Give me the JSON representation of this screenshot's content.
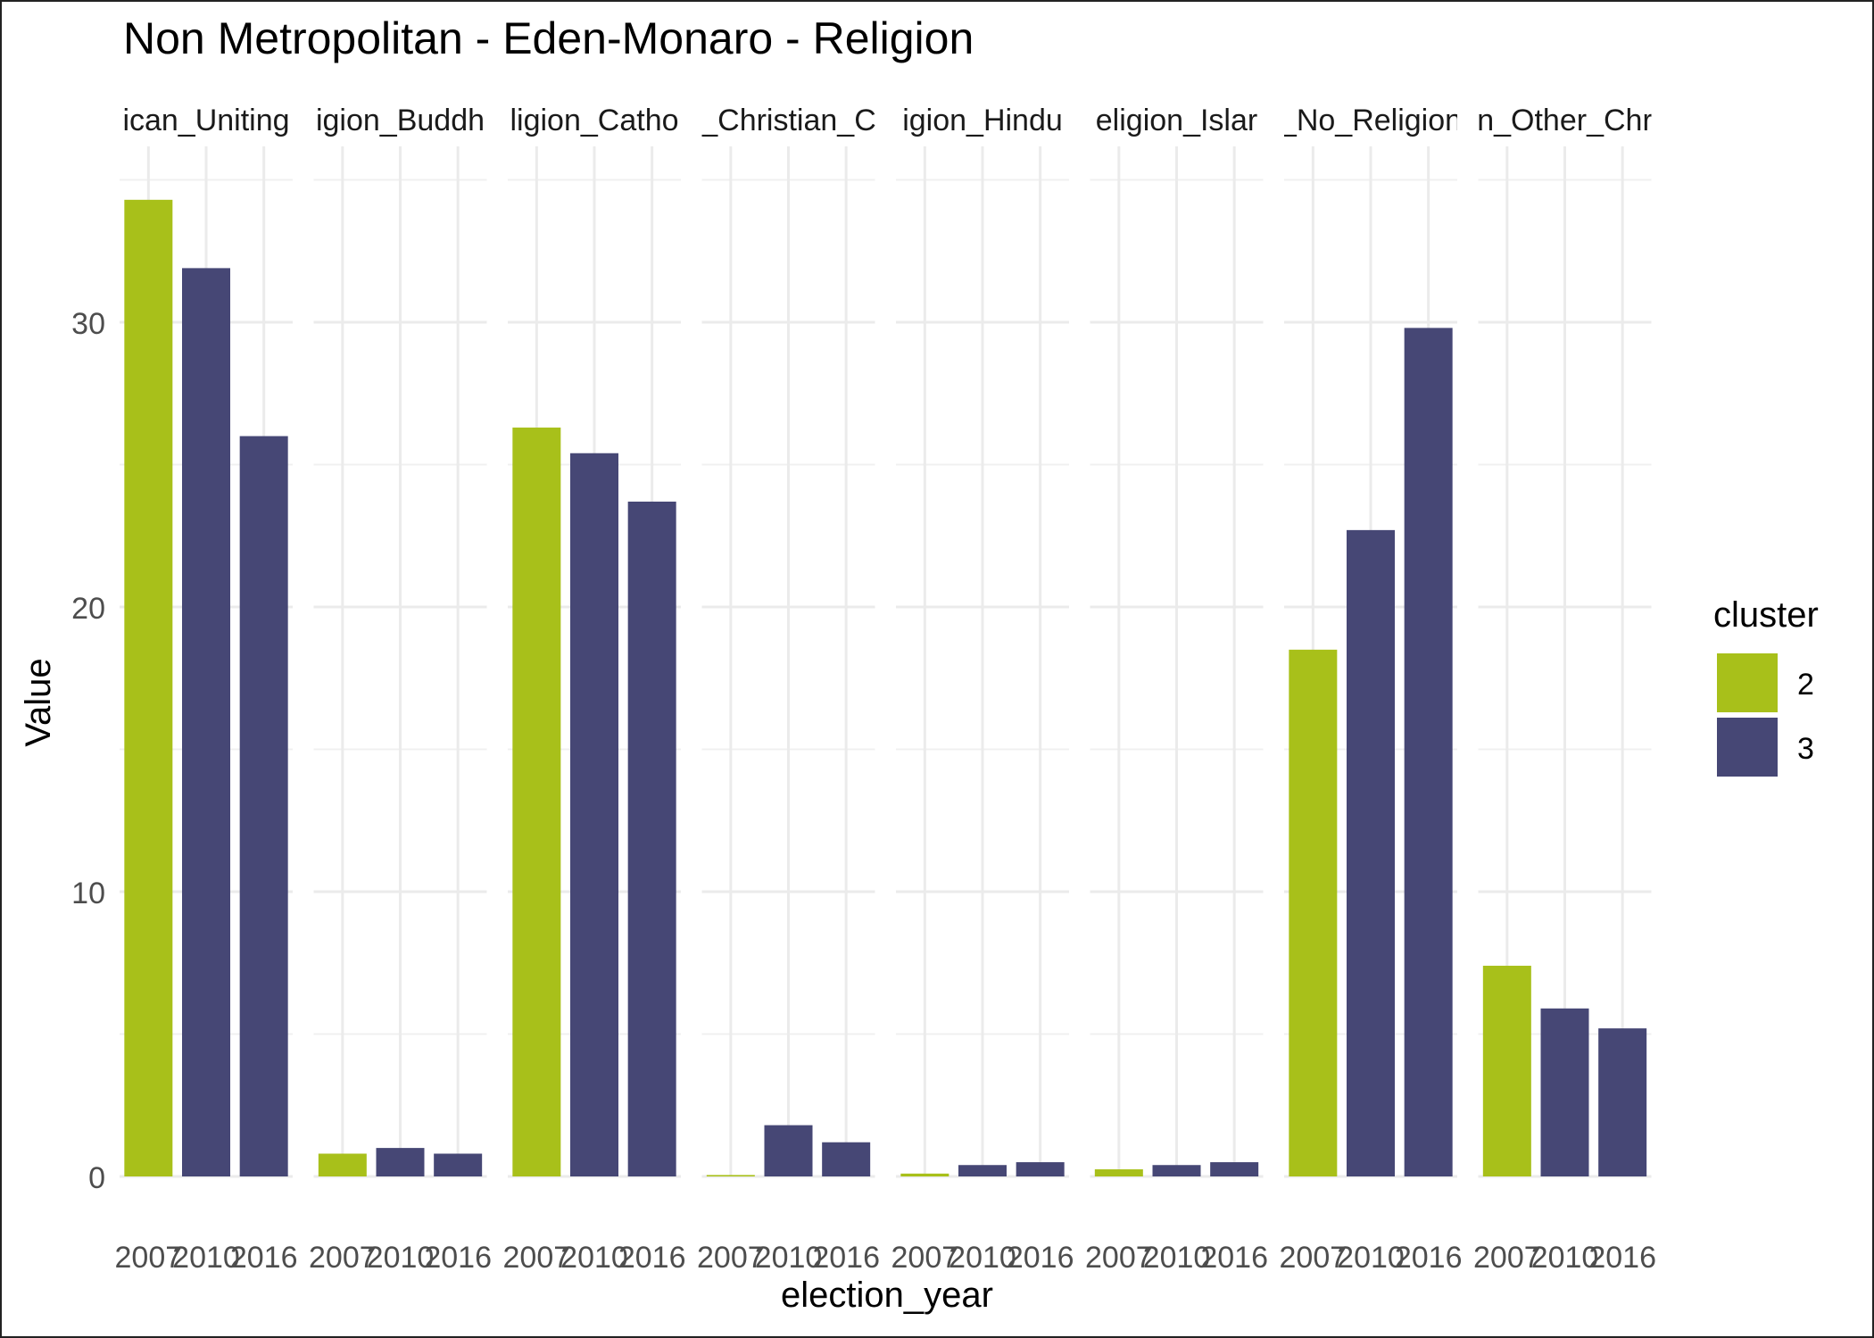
{
  "chart_data": {
    "type": "bar",
    "title": "Non Metropolitan - Eden-Monaro - Religion",
    "xlabel": "election_year",
    "ylabel": "Value",
    "ylim": [
      0,
      35.5
    ],
    "yticks": [
      0,
      10,
      20,
      30
    ],
    "grid": true,
    "categories": [
      "2007",
      "2010",
      "2016"
    ],
    "panels": [
      {
        "label": "Religion_Anglican_Uniting",
        "shown": "ican_Uniting",
        "values": [
          34.3,
          31.9,
          26.0
        ],
        "cluster": [
          "2",
          "3",
          "3"
        ]
      },
      {
        "label": "Religion_Buddhism",
        "shown": "igion_Buddh",
        "values": [
          0.8,
          1.0,
          0.8
        ],
        "cluster": [
          "2",
          "3",
          "3"
        ]
      },
      {
        "label": "Religion_Catholic",
        "shown": "ligion_Catho",
        "values": [
          26.3,
          25.4,
          23.7
        ],
        "cluster": [
          "2",
          "3",
          "3"
        ]
      },
      {
        "label": "Religion_Christian_Other",
        "shown": "_Christian_C",
        "values": [
          0.05,
          1.8,
          1.2
        ],
        "cluster": [
          "2",
          "3",
          "3"
        ]
      },
      {
        "label": "Religion_Hinduism",
        "shown": "igion_Hindu",
        "values": [
          0.1,
          0.4,
          0.5
        ],
        "cluster": [
          "2",
          "3",
          "3"
        ]
      },
      {
        "label": "Religion_Islam",
        "shown": "eligion_Islar",
        "values": [
          0.25,
          0.4,
          0.5
        ],
        "cluster": [
          "2",
          "3",
          "3"
        ]
      },
      {
        "label": "Religion_No_Religion",
        "shown": "_No_Religion",
        "values": [
          18.5,
          22.7,
          29.8
        ],
        "cluster": [
          "2",
          "3",
          "3"
        ]
      },
      {
        "label": "Religion_Other_Christian",
        "shown": "n_Other_Chr",
        "values": [
          7.4,
          5.9,
          5.2
        ],
        "cluster": [
          "2",
          "3",
          "3"
        ]
      }
    ],
    "legend": {
      "title": "cluster",
      "position": "right",
      "items": [
        {
          "label": "2",
          "color": "#A8C01A"
        },
        {
          "label": "3",
          "color": "#464775"
        }
      ]
    }
  }
}
